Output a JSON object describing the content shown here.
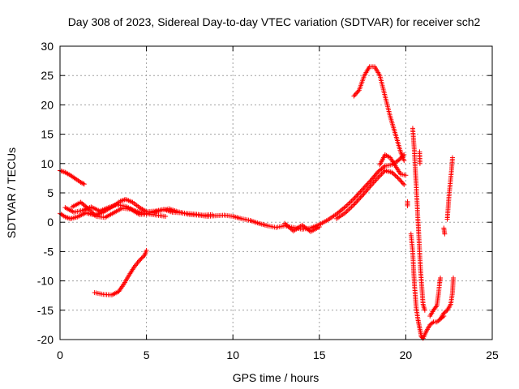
{
  "chart_data": {
    "type": "scatter",
    "title": "Day 308 of 2023, Sidereal Day-to-day VTEC variation (SDTVAR) for receiver sch2",
    "xlabel": "GPS time / hours",
    "ylabel": "SDTVAR / TECUs",
    "xlim": [
      0,
      25
    ],
    "ylim": [
      -20,
      30
    ],
    "xticks": [
      "0",
      "5",
      "10",
      "15",
      "20",
      "25"
    ],
    "yticks": [
      "30",
      "25",
      "20",
      "15",
      "10",
      "5",
      "0",
      "-5",
      "-10",
      "-15",
      "-20"
    ],
    "grid": true,
    "marker": "+",
    "series": [
      {
        "name": "sch2",
        "color": "#ff0000",
        "segments": [
          [
            [
              0.0,
              8.8
            ],
            [
              0.3,
              8.5
            ],
            [
              0.6,
              8.0
            ],
            [
              0.9,
              7.4
            ],
            [
              1.2,
              6.8
            ],
            [
              1.4,
              6.5
            ]
          ],
          [
            [
              0.0,
              1.5
            ],
            [
              0.3,
              0.9
            ],
            [
              0.6,
              0.6
            ],
            [
              1.0,
              0.9
            ],
            [
              1.5,
              1.6
            ],
            [
              2.0,
              1.2
            ],
            [
              2.5,
              1.7
            ],
            [
              3.0,
              2.6
            ],
            [
              3.5,
              3.6
            ],
            [
              3.8,
              3.9
            ],
            [
              4.2,
              3.4
            ],
            [
              4.6,
              2.5
            ],
            [
              5.0,
              1.8
            ],
            [
              5.5,
              1.9
            ],
            [
              6.0,
              2.2
            ],
            [
              6.5,
              1.7
            ],
            [
              7.0,
              1.6
            ],
            [
              7.5,
              1.3
            ],
            [
              8.0,
              1.2
            ],
            [
              8.5,
              1.0
            ],
            [
              9.0,
              1.1
            ],
            [
              9.5,
              1.2
            ],
            [
              10.0,
              1.0
            ],
            [
              10.5,
              0.6
            ],
            [
              11.0,
              0.3
            ],
            [
              11.5,
              -0.2
            ],
            [
              12.0,
              -0.6
            ],
            [
              12.5,
              -0.9
            ],
            [
              13.0,
              -0.6
            ],
            [
              13.5,
              -0.9
            ],
            [
              14.0,
              -1.2
            ],
            [
              14.5,
              -1.0
            ],
            [
              15.0,
              -0.4
            ],
            [
              15.5,
              0.4
            ],
            [
              16.0,
              1.4
            ],
            [
              16.5,
              2.6
            ],
            [
              17.0,
              4.0
            ],
            [
              17.5,
              5.6
            ],
            [
              18.0,
              7.2
            ],
            [
              18.4,
              8.6
            ],
            [
              18.8,
              9.6
            ],
            [
              19.2,
              9.8
            ],
            [
              19.6,
              10.6
            ],
            [
              19.9,
              11.5
            ]
          ],
          [
            [
              0.3,
              2.5
            ],
            [
              0.8,
              1.7
            ],
            [
              1.3,
              2.0
            ],
            [
              1.8,
              2.6
            ],
            [
              2.3,
              1.9
            ],
            [
              2.8,
              2.5
            ],
            [
              3.3,
              3.0
            ],
            [
              3.8,
              2.7
            ],
            [
              4.3,
              2.0
            ],
            [
              4.8,
              1.5
            ],
            [
              5.3,
              1.6
            ],
            [
              5.8,
              2.0
            ],
            [
              6.3,
              2.3
            ],
            [
              6.8,
              1.8
            ],
            [
              7.3,
              1.5
            ],
            [
              7.8,
              1.4
            ],
            [
              8.3,
              1.2
            ],
            [
              8.8,
              1.3
            ]
          ],
          [
            [
              0.7,
              2.6
            ],
            [
              1.2,
              3.4
            ],
            [
              1.6,
              2.4
            ],
            [
              2.1,
              1.0
            ],
            [
              2.6,
              0.8
            ],
            [
              3.1,
              1.6
            ],
            [
              3.6,
              2.4
            ],
            [
              4.1,
              2.2
            ],
            [
              4.6,
              1.3
            ],
            [
              5.1,
              1.4
            ],
            [
              5.6,
              1.2
            ],
            [
              6.1,
              1.0
            ]
          ],
          [
            [
              13.0,
              -0.2
            ],
            [
              13.5,
              -1.5
            ],
            [
              14.0,
              -0.5
            ],
            [
              14.5,
              -1.6
            ],
            [
              15.0,
              -0.8
            ]
          ],
          [
            [
              16.0,
              0.6
            ],
            [
              16.5,
              1.6
            ],
            [
              17.0,
              3.0
            ],
            [
              17.5,
              4.6
            ],
            [
              18.0,
              6.3
            ],
            [
              18.4,
              7.6
            ],
            [
              18.8,
              8.8
            ],
            [
              19.2,
              8.5
            ],
            [
              19.6,
              7.4
            ],
            [
              19.9,
              6.4
            ]
          ],
          [
            [
              18.5,
              9.8
            ],
            [
              18.8,
              11.5
            ],
            [
              19.1,
              11.0
            ],
            [
              19.4,
              9.6
            ],
            [
              19.7,
              8.2
            ],
            [
              20.0,
              8.0
            ]
          ],
          [
            [
              2.0,
              -12.0
            ],
            [
              2.5,
              -12.3
            ],
            [
              3.0,
              -12.4
            ],
            [
              3.4,
              -11.8
            ],
            [
              3.7,
              -10.5
            ],
            [
              4.0,
              -9.0
            ],
            [
              4.3,
              -7.6
            ],
            [
              4.6,
              -6.5
            ],
            [
              4.9,
              -5.6
            ],
            [
              5.0,
              -4.8
            ]
          ],
          [
            [
              17.0,
              21.5
            ],
            [
              17.3,
              22.5
            ],
            [
              17.6,
              25.0
            ],
            [
              17.9,
              26.5
            ],
            [
              18.2,
              26.5
            ],
            [
              18.5,
              25.0
            ],
            [
              18.8,
              21.5
            ],
            [
              19.1,
              18.0
            ],
            [
              19.4,
              15.0
            ],
            [
              19.7,
              12.0
            ],
            [
              19.9,
              10.5
            ]
          ],
          [
            [
              20.1,
              3.5
            ],
            [
              20.1,
              2.8
            ]
          ],
          [
            [
              20.3,
              -2.0
            ],
            [
              20.4,
              -5.0
            ],
            [
              20.45,
              -8.0
            ],
            [
              20.5,
              -10.5
            ],
            [
              20.55,
              -12.5
            ],
            [
              20.6,
              -14.5
            ],
            [
              20.7,
              -16.5
            ],
            [
              20.8,
              -18.0
            ],
            [
              20.9,
              -19.5
            ],
            [
              21.0,
              -19.8
            ],
            [
              21.2,
              -18.5
            ],
            [
              21.4,
              -17.5
            ],
            [
              21.6,
              -17.0
            ],
            [
              21.8,
              -17.0
            ],
            [
              22.0,
              -16.5
            ],
            [
              22.2,
              -15.5
            ],
            [
              22.4,
              -15.0
            ],
            [
              22.6,
              -14.0
            ],
            [
              22.7,
              -12.0
            ],
            [
              22.75,
              -9.5
            ]
          ],
          [
            [
              20.4,
              16.0
            ],
            [
              20.45,
              14.0
            ],
            [
              20.5,
              12.0
            ],
            [
              20.55,
              9.0
            ],
            [
              20.6,
              6.5
            ],
            [
              20.65,
              3.5
            ],
            [
              20.7,
              0.5
            ],
            [
              20.75,
              -2.0
            ],
            [
              20.8,
              -5.0
            ],
            [
              20.85,
              -8.0
            ],
            [
              20.9,
              -10.0
            ],
            [
              20.95,
              -12.0
            ],
            [
              21.0,
              -14.0
            ],
            [
              21.1,
              -15.0
            ]
          ],
          [
            [
              20.8,
              12.0
            ],
            [
              20.82,
              10.0
            ]
          ],
          [
            [
              21.4,
              -16.0
            ],
            [
              21.6,
              -15.0
            ],
            [
              21.8,
              -14.2
            ],
            [
              21.9,
              -12.0
            ],
            [
              21.95,
              -10.5
            ],
            [
              22.0,
              -9.5
            ]
          ],
          [
            [
              22.0,
              -16.5
            ],
            [
              22.2,
              -16.0
            ]
          ],
          [
            [
              22.2,
              -1.0
            ],
            [
              22.25,
              -2.0
            ]
          ],
          [
            [
              22.4,
              0.5
            ],
            [
              22.45,
              2.5
            ],
            [
              22.5,
              4.5
            ],
            [
              22.55,
              6.0
            ],
            [
              22.6,
              7.5
            ],
            [
              22.65,
              9.0
            ],
            [
              22.7,
              11.0
            ]
          ]
        ]
      }
    ]
  }
}
